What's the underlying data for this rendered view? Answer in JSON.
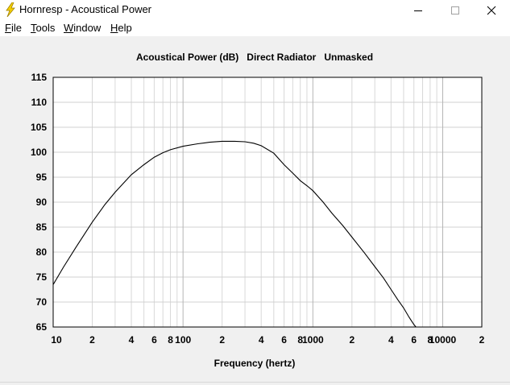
{
  "window": {
    "title": "Hornresp - Acoustical Power",
    "app_icon": "lightning-icon",
    "controls": [
      "minimize-icon",
      "maximize-icon",
      "close-icon"
    ]
  },
  "menu": {
    "items": [
      {
        "label": "File",
        "mnemonic": "F",
        "rest": "ile"
      },
      {
        "label": "Tools",
        "mnemonic": "T",
        "rest": "ools"
      },
      {
        "label": "Window",
        "mnemonic": "W",
        "rest": "indow"
      },
      {
        "label": "Help",
        "mnemonic": "H",
        "rest": "elp"
      }
    ]
  },
  "chart_data": {
    "type": "line",
    "title": "Acoustical Power (dB)   Direct Radiator   Unmasked",
    "xlabel": "Frequency (hertz)",
    "ylabel": "",
    "xscale": "log",
    "xlim": [
      10,
      20000
    ],
    "ylim": [
      65,
      115
    ],
    "grid": true,
    "yticks": [
      65,
      70,
      75,
      80,
      85,
      90,
      95,
      100,
      105,
      110,
      115
    ],
    "xtick_labels": [
      {
        "x": 10,
        "label": "10"
      },
      {
        "x": 20,
        "label": "2"
      },
      {
        "x": 40,
        "label": "4"
      },
      {
        "x": 60,
        "label": "6"
      },
      {
        "x": 80,
        "label": "8"
      },
      {
        "x": 100,
        "label": "100"
      },
      {
        "x": 200,
        "label": "2"
      },
      {
        "x": 400,
        "label": "4"
      },
      {
        "x": 600,
        "label": "6"
      },
      {
        "x": 800,
        "label": "8"
      },
      {
        "x": 1000,
        "label": "1000"
      },
      {
        "x": 2000,
        "label": "2"
      },
      {
        "x": 4000,
        "label": "4"
      },
      {
        "x": 6000,
        "label": "6"
      },
      {
        "x": 8000,
        "label": "8"
      },
      {
        "x": 10000,
        "label": "10000"
      },
      {
        "x": 20000,
        "label": "2"
      }
    ],
    "series": [
      {
        "color": "#000000",
        "x": [
          10,
          12,
          15,
          20,
          25,
          30,
          40,
          50,
          60,
          70,
          80,
          100,
          130,
          160,
          200,
          250,
          300,
          350,
          400,
          500,
          600,
          700,
          800,
          900,
          1000,
          1200,
          1400,
          1700,
          2000,
          2500,
          3000,
          3500,
          4000,
          4500,
          5000,
          5500,
          6000,
          6500
        ],
        "y": [
          73.5,
          77,
          81,
          86,
          89.5,
          92,
          95.5,
          97.5,
          99,
          99.9,
          100.5,
          101.2,
          101.7,
          102,
          102.2,
          102.2,
          102.1,
          101.8,
          101.3,
          99.8,
          97.5,
          95.8,
          94.3,
          93.3,
          92.3,
          90,
          87.8,
          85.3,
          83,
          79.8,
          77.1,
          74.8,
          72.5,
          70.5,
          68.8,
          67,
          65.5,
          64.4
        ]
      }
    ]
  }
}
